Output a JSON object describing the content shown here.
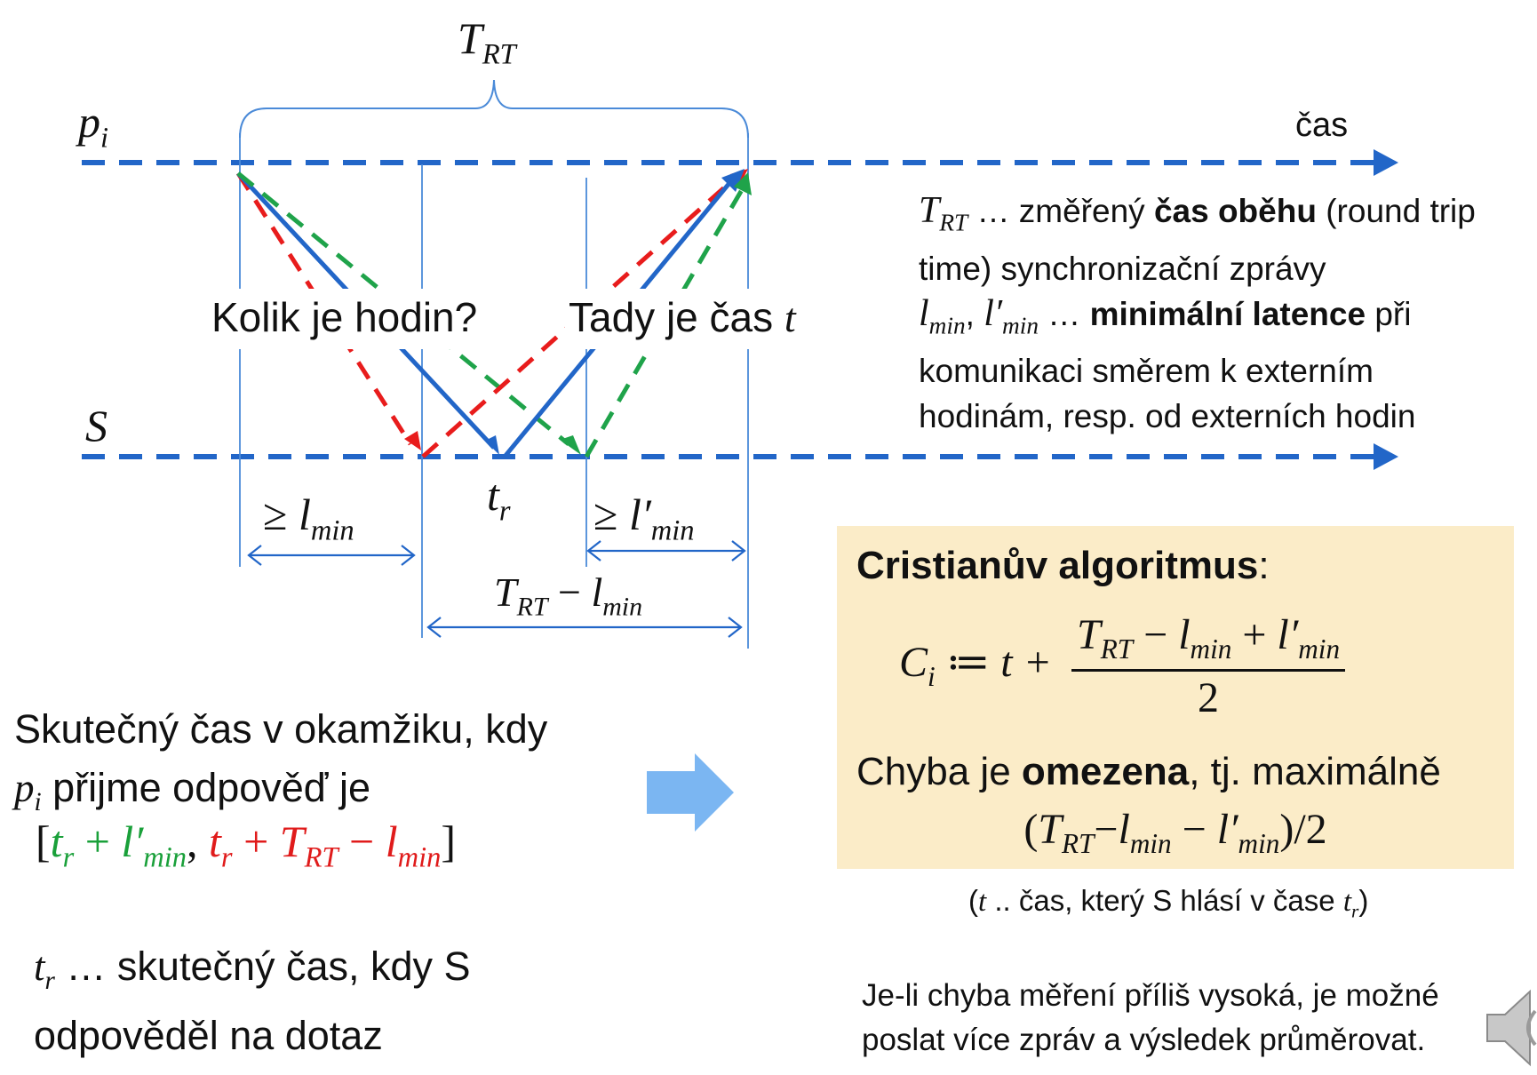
{
  "diagram": {
    "labels": {
      "trt_top": {
        "main": "T",
        "sub": "RT"
      },
      "pi": {
        "main": "p",
        "sub": "i"
      },
      "cas": "čas",
      "S": "S",
      "question": "Kolik je hodin?",
      "answer_prefix": "Tady je čas ",
      "answer_var": "t",
      "tr": {
        "main": "t",
        "sub": "r"
      },
      "ge_lmin": {
        "ge": "≥ ",
        "main": "l",
        "sub": "min"
      },
      "ge_lmin_prime": {
        "ge": "≥ ",
        "main": "l′",
        "sub": "min"
      },
      "trt_minus_lmin": {
        "main": "T",
        "sub": "RT",
        "minus": " − ",
        "main2": "l",
        "sub2": "min"
      }
    },
    "colors": {
      "blue_axis": "#2266c8",
      "blue_arrow": "#2266c8",
      "red": "#e81c1c",
      "green": "#1fa34a",
      "guide": "#4a8ad8",
      "big_arrow": "#7bb6f2"
    }
  },
  "legend": {
    "trt_var": {
      "main": "T",
      "sub": "RT"
    },
    "line1a": " … změřený ",
    "line1b": "čas oběhu",
    "line1c": " (round trip time) synchronizační zprávy",
    "lmin_var": {
      "main": "l",
      "sub": "min"
    },
    "lminp_var": {
      "main": "l′",
      "sub": "min"
    },
    "line2a": " … ",
    "line2b": "minimální latence",
    "line2c": " při komunikaci směrem k externím hodinám, resp. od externích hodin"
  },
  "algorithm_box": {
    "title": "Cristianův algoritmus",
    "title_colon": ":",
    "formula_lhs": {
      "main": "C",
      "sub": "i"
    },
    "assign": " ≔ t + ",
    "numerator": {
      "t": "T",
      "tsub": "RT",
      "m1": " − ",
      "l": "l",
      "lsub": "min",
      "p": " + ",
      "lp": "l′",
      "lpsub": "min"
    },
    "denominator": "2",
    "error_prefix": "Chyba je ",
    "error_bold": "omezena",
    "error_suffix": ", tj. maximálně",
    "error_expr": {
      "open": "(",
      "t": "T",
      "tsub": "RT",
      "m1": "−",
      "l": "l",
      "lsub": "min",
      "m2": " − ",
      "lp": "l′",
      "lpsub": "min",
      "close": ")/2"
    }
  },
  "note": {
    "open": "(",
    "t": "t",
    "mid": " .. čas, který S hlásí v čase ",
    "tr": "t",
    "trsub": "r",
    "close": ")"
  },
  "bottom_right": "Je-li chyba měření příliš vysoká, je možné poslat více zpráv a výsledek průměrovat.",
  "bottom_left": {
    "line1": "Skutečný čas v okamžiku, kdy",
    "pi": {
      "main": "p",
      "sub": "i"
    },
    "line2": " přijme odpověď je",
    "interval": {
      "open": "[",
      "g_t": "t",
      "g_tsub": "r",
      "g_plus": " + ",
      "g_l": "l′",
      "g_lsub": "min",
      "comma": ", ",
      "r_t": "t",
      "r_tsub": "r",
      "r_plus": " + ",
      "r_T": "T",
      "r_Tsub": "RT",
      "r_minus": " − ",
      "r_l": "l",
      "r_lsub": "min",
      "close": "]"
    },
    "tr_def": {
      "main": "t",
      "sub": "r"
    },
    "tr_text": " … skutečný čas, kdy S odpověděl na dotaz"
  }
}
